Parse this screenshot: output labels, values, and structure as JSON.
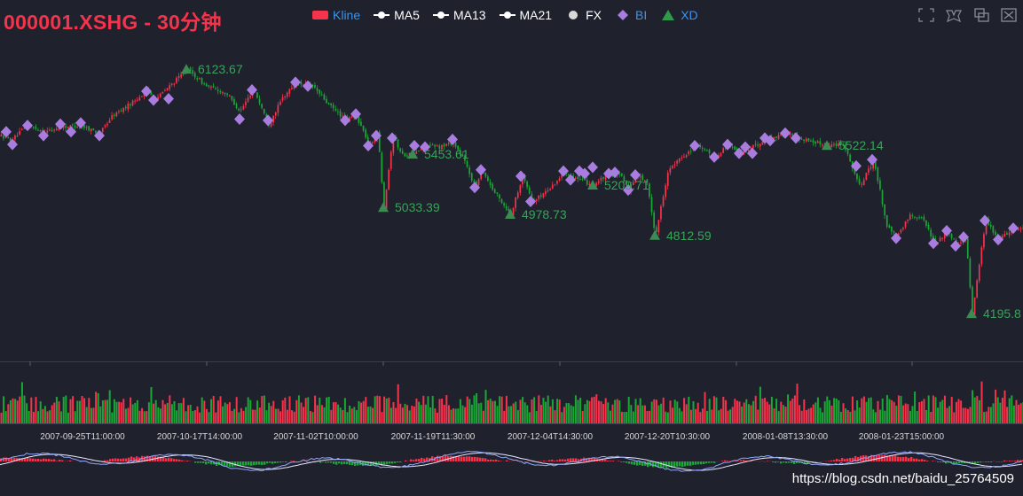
{
  "title": "000001.XSHG - 30分钟",
  "watermark": "https://blog.csdn.net/baidu_25764509",
  "legend": [
    {
      "label": "Kline",
      "icon": "rect",
      "color": "#f5334b",
      "text_color": "#3a94f1"
    },
    {
      "label": "MA5",
      "icon": "line-circle",
      "color": "#ffffff",
      "text_color": "#ffffff"
    },
    {
      "label": "MA13",
      "icon": "line-circle",
      "color": "#ffffff",
      "text_color": "#ffffff"
    },
    {
      "label": "MA21",
      "icon": "line-circle",
      "color": "#ffffff",
      "text_color": "#ffffff"
    },
    {
      "label": "FX",
      "icon": "circle",
      "color": "#d9d9d9",
      "text_color": "#ffffff"
    },
    {
      "label": "BI",
      "icon": "diamond",
      "color": "#a97de0",
      "text_color": "#3a94f1"
    },
    {
      "label": "XD",
      "icon": "triangle",
      "color": "#2f9a4a",
      "text_color": "#3a94f1"
    }
  ],
  "toolbox": [
    "zoom-icon",
    "zoom-reset-icon",
    "restore-icon",
    "save-image-icon"
  ],
  "colors": {
    "up": "#f5334b",
    "down": "#1aa736",
    "bi": "#a97de0",
    "xd": "#3d8a55",
    "dif": "#8fa7ff",
    "dea": "#e7e7ff",
    "label": "#39a35a",
    "axis": "#d8d8d8",
    "grid": "#2d303e"
  },
  "chart_data": {
    "type": "candlestick",
    "x_tick_labels": [
      "2007-09-25T11:00:00",
      "2007-10-17T14:00:00",
      "2007-11-02T10:00:00",
      "2007-11-19T11:30:00",
      "2007-12-04T14:30:00",
      "2007-12-20T10:30:00",
      "2008-01-08T13:30:00",
      "2008-01-23T15:00:00"
    ],
    "y_range": [
      4050,
      6250
    ],
    "price_path": [
      [
        0,
        5600
      ],
      [
        12,
        5560
      ],
      [
        30,
        5680
      ],
      [
        50,
        5630
      ],
      [
        70,
        5670
      ],
      [
        90,
        5680
      ],
      [
        112,
        5620
      ],
      [
        125,
        5750
      ],
      [
        140,
        5820
      ],
      [
        165,
        5950
      ],
      [
        175,
        5890
      ],
      [
        195,
        6020
      ],
      [
        210,
        6123.67
      ],
      [
        232,
        5990
      ],
      [
        255,
        5930
      ],
      [
        270,
        5790
      ],
      [
        285,
        5970
      ],
      [
        302,
        5690
      ],
      [
        318,
        5900
      ],
      [
        333,
        6020
      ],
      [
        352,
        5990
      ],
      [
        370,
        5840
      ],
      [
        390,
        5720
      ],
      [
        400,
        5770
      ],
      [
        416,
        5520
      ],
      [
        425,
        5630
      ],
      [
        432,
        5033.39
      ],
      [
        442,
        5600
      ],
      [
        452,
        5450
      ],
      [
        465,
        5453.61
      ],
      [
        480,
        5520
      ],
      [
        495,
        5510
      ],
      [
        510,
        5550
      ],
      [
        522,
        5410
      ],
      [
        535,
        5190
      ],
      [
        542,
        5340
      ],
      [
        555,
        5170
      ],
      [
        575,
        4978.73
      ],
      [
        588,
        5280
      ],
      [
        600,
        5080
      ],
      [
        620,
        5190
      ],
      [
        636,
        5320
      ],
      [
        652,
        5250
      ],
      [
        668,
        5209.71
      ],
      [
        686,
        5300
      ],
      [
        700,
        5280
      ],
      [
        708,
        5170
      ],
      [
        716,
        5290
      ],
      [
        728,
        5240
      ],
      [
        738,
        4812.59
      ],
      [
        752,
        5320
      ],
      [
        768,
        5430
      ],
      [
        783,
        5520
      ],
      [
        805,
        5430
      ],
      [
        820,
        5530
      ],
      [
        833,
        5460
      ],
      [
        848,
        5510
      ],
      [
        862,
        5570
      ],
      [
        885,
        5620
      ],
      [
        900,
        5580
      ],
      [
        932,
        5522.14
      ],
      [
        950,
        5540
      ],
      [
        968,
        5200
      ],
      [
        984,
        5400
      ],
      [
        993,
        5100
      ],
      [
        998,
        4900
      ],
      [
        1010,
        4790
      ],
      [
        1025,
        4980
      ],
      [
        1040,
        4940
      ],
      [
        1053,
        4750
      ],
      [
        1068,
        4850
      ],
      [
        1078,
        4730
      ],
      [
        1088,
        4800
      ],
      [
        1095,
        4195.8
      ],
      [
        1110,
        4930
      ],
      [
        1125,
        4780
      ],
      [
        1142,
        4870
      ]
    ],
    "bi_points": [
      [
        7,
        5630
      ],
      [
        14,
        5530
      ],
      [
        31,
        5680
      ],
      [
        49,
        5600
      ],
      [
        68,
        5690
      ],
      [
        80,
        5630
      ],
      [
        91,
        5700
      ],
      [
        112,
        5600
      ],
      [
        165,
        5950
      ],
      [
        173,
        5880
      ],
      [
        190,
        5890
      ],
      [
        270,
        5730
      ],
      [
        284,
        5960
      ],
      [
        302,
        5720
      ],
      [
        333,
        6020
      ],
      [
        347,
        5990
      ],
      [
        389,
        5720
      ],
      [
        401,
        5770
      ],
      [
        415,
        5520
      ],
      [
        424,
        5600
      ],
      [
        442,
        5580
      ],
      [
        467,
        5520
      ],
      [
        479,
        5510
      ],
      [
        510,
        5570
      ],
      [
        535,
        5190
      ],
      [
        542,
        5330
      ],
      [
        587,
        5280
      ],
      [
        598,
        5080
      ],
      [
        635,
        5320
      ],
      [
        643,
        5250
      ],
      [
        653,
        5320
      ],
      [
        659,
        5300
      ],
      [
        668,
        5350
      ],
      [
        686,
        5300
      ],
      [
        693,
        5310
      ],
      [
        708,
        5170
      ],
      [
        716,
        5290
      ],
      [
        783,
        5520
      ],
      [
        805,
        5430
      ],
      [
        820,
        5530
      ],
      [
        833,
        5460
      ],
      [
        840,
        5510
      ],
      [
        848,
        5460
      ],
      [
        862,
        5580
      ],
      [
        868,
        5560
      ],
      [
        885,
        5620
      ],
      [
        897,
        5580
      ],
      [
        965,
        5360
      ],
      [
        983,
        5410
      ],
      [
        1010,
        4790
      ],
      [
        1052,
        4750
      ],
      [
        1067,
        4850
      ],
      [
        1077,
        4730
      ],
      [
        1086,
        4800
      ],
      [
        1110,
        4930
      ],
      [
        1125,
        4780
      ],
      [
        1142,
        4870
      ]
    ],
    "xd_points": [
      [
        210,
        6123.67
      ],
      [
        432,
        5033.39
      ],
      [
        465,
        5453.61
      ],
      [
        575,
        4978.73
      ],
      [
        668,
        5209.71
      ],
      [
        738,
        4812.59
      ],
      [
        932,
        5522.14
      ],
      [
        1095,
        4195.8
      ]
    ],
    "xd_labels": [
      "6123.67",
      "5033.39",
      "5453.61",
      "4978.73",
      "5209.71",
      "4812.59",
      "5522.14",
      "4195.8"
    ]
  }
}
